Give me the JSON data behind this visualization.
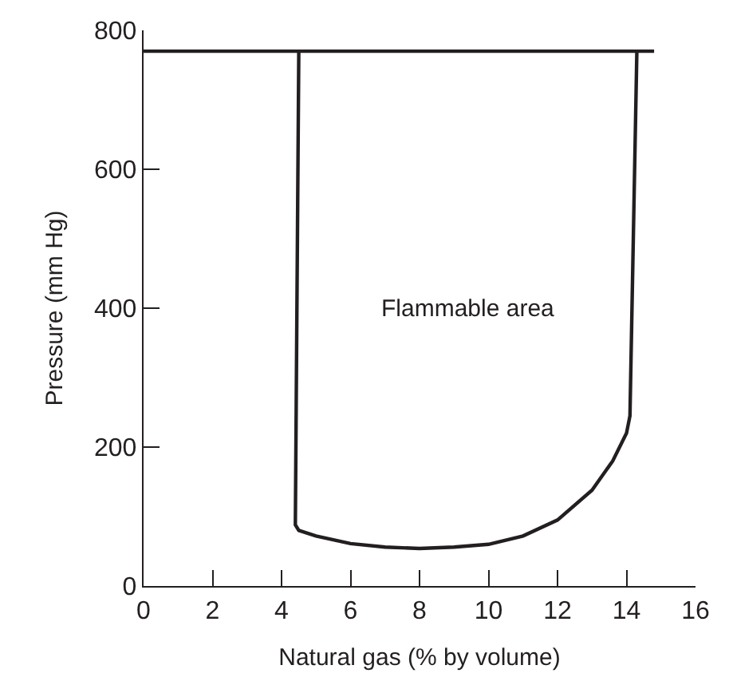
{
  "chart_data": {
    "type": "line",
    "xlabel": "Natural gas (% by volume)",
    "ylabel": "Pressure (mm Hg)",
    "series": [
      {
        "color": "#231f20",
        "x": [
          0,
          14.8
        ],
        "values": [
          770,
          770
        ]
      },
      {
        "color": "#231f20",
        "x": [
          4.5,
          4.4,
          4.5,
          5,
          6,
          7,
          8,
          9,
          10,
          11,
          12,
          13,
          13.6,
          14.0,
          14.1,
          14.3
        ],
        "values": [
          770,
          88,
          80,
          72,
          61,
          56,
          54,
          56,
          60,
          72,
          95,
          138,
          180,
          220,
          245,
          770
        ]
      }
    ],
    "xlim": [
      0,
      16
    ],
    "xticks": [
      0,
      2,
      4,
      6,
      8,
      10,
      12,
      14,
      16
    ],
    "ylim": [
      0,
      800
    ],
    "yticks": [
      0,
      200,
      400,
      600,
      800
    ],
    "annotations": [
      "Flammable area"
    ],
    "marker": "none",
    "line_style": "solid"
  }
}
